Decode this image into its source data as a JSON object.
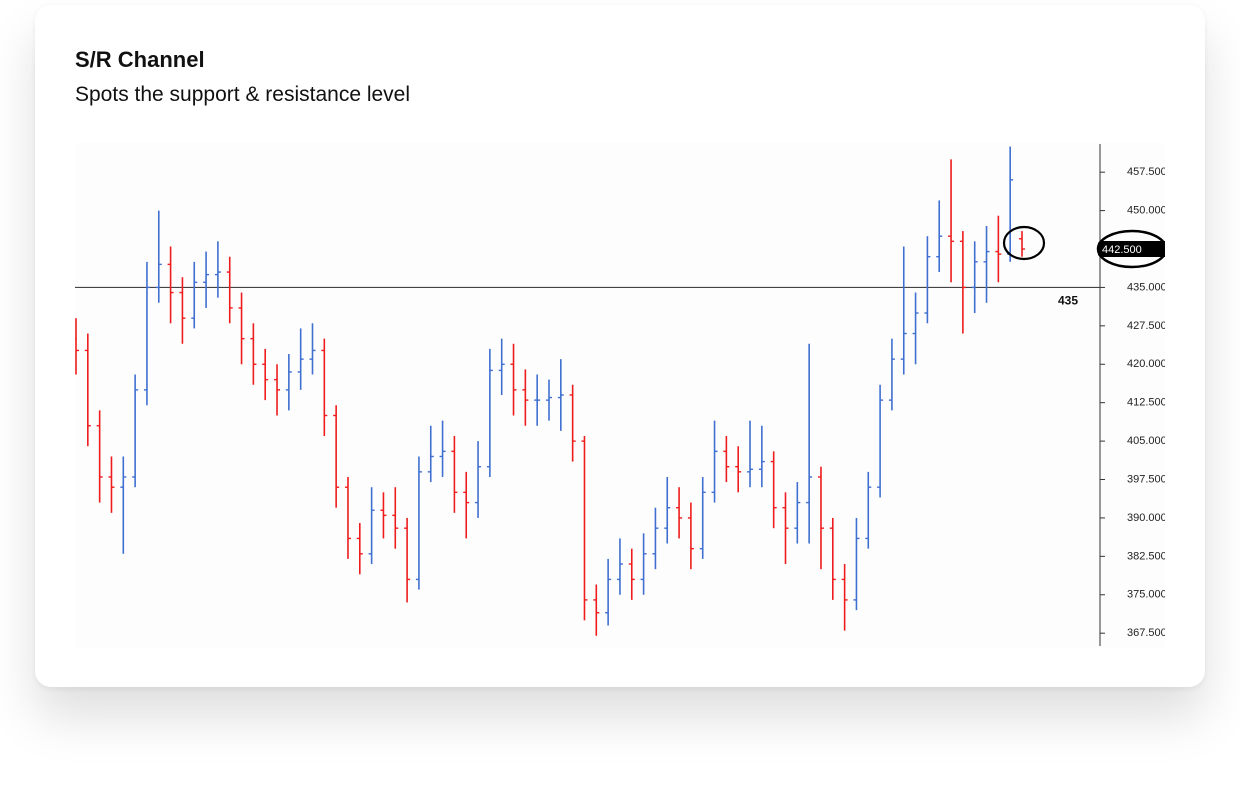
{
  "chart_data": {
    "type": "ohlc",
    "title": "S/R Channel",
    "subtitle": "Spots the support & resistance level",
    "open": [
      425,
      422.7,
      408,
      398,
      396,
      398,
      415,
      435,
      439.5,
      434,
      429,
      436,
      437.5,
      438,
      431,
      425,
      420,
      417,
      415,
      418.5,
      421,
      422.7,
      410,
      396,
      386,
      383,
      391.5,
      390.5,
      388,
      378,
      399,
      402,
      403,
      395,
      393,
      400,
      418.8,
      420,
      415,
      413,
      413,
      413.5,
      414,
      405,
      374,
      371.5,
      378,
      381,
      378,
      383,
      388,
      392,
      390,
      384,
      395,
      403,
      400,
      399,
      399.5,
      401,
      392,
      388,
      393,
      398,
      388,
      378,
      374,
      386,
      396,
      413,
      421,
      426,
      430,
      441,
      445,
      444,
      435,
      440,
      442,
      441.5,
      444.5
    ],
    "high": [
      429,
      426,
      411,
      402,
      402,
      418,
      440,
      450,
      443,
      437,
      440,
      442,
      444,
      441,
      434,
      428,
      423,
      420,
      422,
      427,
      428,
      425,
      412,
      398,
      389,
      396,
      395,
      396,
      390,
      402,
      408,
      409,
      406,
      399,
      405,
      423,
      425,
      424,
      419,
      418,
      417,
      421,
      416,
      406,
      377,
      382,
      386,
      384,
      387,
      392,
      398,
      396,
      393,
      398,
      409,
      406,
      404,
      409,
      408,
      403,
      395,
      397,
      424,
      400,
      390,
      381,
      390,
      399,
      416,
      425,
      443,
      434,
      445,
      452,
      460,
      446,
      444,
      447,
      449,
      462.5,
      446
    ],
    "low": [
      418,
      404,
      393,
      391,
      383,
      396,
      412,
      432,
      428,
      424,
      427,
      431,
      433,
      428,
      420,
      416,
      413,
      410,
      411,
      415,
      418,
      406,
      392,
      382,
      379,
      381,
      386,
      384,
      373.5,
      376,
      397,
      398,
      391,
      386,
      390,
      398,
      414,
      410,
      408,
      408,
      409,
      407,
      401,
      370,
      367,
      369,
      375,
      374,
      375,
      380,
      385,
      386,
      380,
      382,
      393,
      397,
      395,
      396,
      396,
      388,
      381,
      385,
      385,
      380,
      374,
      368,
      372,
      384,
      394,
      411,
      418,
      420,
      428,
      438,
      436,
      426,
      430,
      432,
      436,
      440,
      441
    ],
    "close": [
      422.7,
      408,
      398,
      396,
      398,
      415,
      435,
      439.5,
      434,
      429,
      436,
      437.5,
      438,
      431,
      425,
      420,
      417,
      415,
      418.5,
      421,
      422.7,
      410,
      396,
      386,
      383,
      391.5,
      390.5,
      388,
      378,
      399,
      402,
      403,
      395,
      393,
      400,
      418.8,
      420,
      415,
      413,
      413,
      413.5,
      414,
      405,
      374,
      371.5,
      378,
      381,
      378,
      383,
      388,
      392,
      390,
      384,
      395,
      403,
      400,
      399,
      399.5,
      401,
      392,
      388,
      393,
      398,
      388,
      378,
      374,
      386,
      396,
      413,
      421,
      426,
      430,
      441,
      445,
      444,
      435,
      440,
      442,
      441.5,
      456,
      442.5
    ],
    "up_color": "#3f6fd0",
    "down_color": "#ee1c1c",
    "ylim": [
      365,
      463
    ],
    "yticks": [
      {
        "value": 367.5,
        "label": "367.500"
      },
      {
        "value": 375,
        "label": "375.000"
      },
      {
        "value": 382.5,
        "label": "382.500"
      },
      {
        "value": 390,
        "label": "390.000"
      },
      {
        "value": 397.5,
        "label": "397.500"
      },
      {
        "value": 405,
        "label": "405.000"
      },
      {
        "value": 412.5,
        "label": "412.500"
      },
      {
        "value": 420,
        "label": "420.000"
      },
      {
        "value": 427.5,
        "label": "427.500"
      },
      {
        "value": 435,
        "label": "435.000"
      },
      {
        "value": 442.5,
        "label": "442.500"
      },
      {
        "value": 450,
        "label": "450.000"
      },
      {
        "value": 457.5,
        "label": "457.500"
      }
    ],
    "sr_level": 435,
    "last_price": {
      "value": 442.5,
      "label": "442.500"
    }
  }
}
